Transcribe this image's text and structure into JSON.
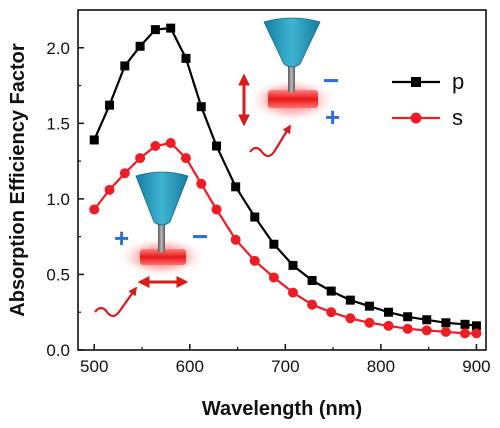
{
  "chart_data": {
    "type": "line",
    "title": "",
    "xlabel": "Wavelength (nm)",
    "ylabel": "Absorption Efficiency Factor",
    "xlim": [
      483,
      910
    ],
    "ylim": [
      0,
      2.25
    ],
    "x_ticks": [
      500,
      600,
      700,
      800,
      900
    ],
    "y_ticks": [
      0.0,
      0.5,
      1.0,
      1.5,
      2.0
    ],
    "x_tick_labels": [
      "500",
      "600",
      "700",
      "800",
      "900"
    ],
    "y_tick_labels": [
      "0.0",
      "0.5",
      "1.0",
      "1.5",
      "2.0"
    ],
    "legend_position": "right",
    "series": [
      {
        "name": "p",
        "color": "#000000",
        "marker": "square",
        "x": [
          500,
          516,
          532,
          548,
          564,
          580,
          596,
          612,
          628,
          648,
          668,
          688,
          708,
          728,
          748,
          768,
          788,
          808,
          828,
          848,
          868,
          888,
          900
        ],
        "y": [
          1.39,
          1.62,
          1.88,
          2.01,
          2.12,
          2.13,
          1.93,
          1.61,
          1.35,
          1.08,
          0.88,
          0.7,
          0.56,
          0.46,
          0.39,
          0.33,
          0.29,
          0.25,
          0.22,
          0.2,
          0.18,
          0.17,
          0.16
        ]
      },
      {
        "name": "s",
        "color": "#ee1c24",
        "marker": "circle",
        "x": [
          500,
          516,
          532,
          548,
          564,
          580,
          596,
          612,
          628,
          648,
          668,
          688,
          708,
          728,
          748,
          768,
          788,
          808,
          828,
          848,
          868,
          888,
          900
        ],
        "y": [
          0.93,
          1.06,
          1.17,
          1.27,
          1.35,
          1.37,
          1.27,
          1.1,
          0.93,
          0.73,
          0.59,
          0.48,
          0.38,
          0.3,
          0.25,
          0.21,
          0.18,
          0.16,
          0.14,
          0.13,
          0.12,
          0.11,
          0.11
        ]
      }
    ],
    "grid": false
  },
  "annotations": {
    "plus_sign": "+",
    "minus_sign": "−",
    "plus_color": "#2a6fd6",
    "minus_color": "#2a6fd6",
    "tip_color": "#1f8fb0",
    "glow_color": "#ff4040"
  }
}
